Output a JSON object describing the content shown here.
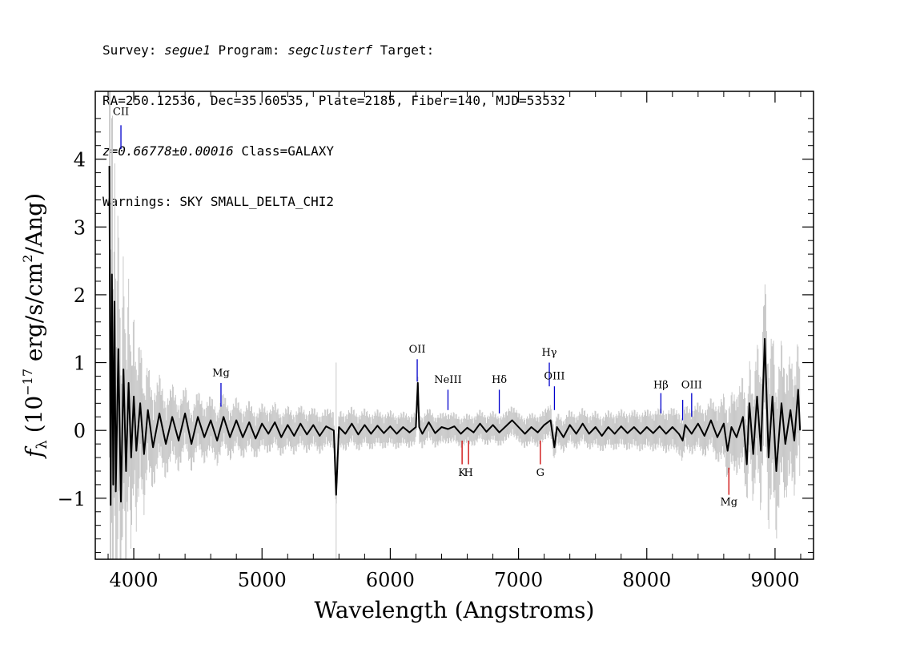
{
  "header": {
    "line1_a": "Survey: ",
    "survey": "segue1",
    "line1_b": " Program: ",
    "program": "segclusterf",
    "line1_c": " Target:",
    "line2": "RA=250.12536, Dec=35.60535, Plate=2185, Fiber=140, MJD=53532",
    "redshift": "z=0.66778±0.00016",
    "class_text": " Class=GALAXY",
    "warnings": "Warnings: SKY SMALL_DELTA_CHI2"
  },
  "chart_data": {
    "type": "line",
    "xlabel": "Wavelength (Angstroms)",
    "ylabel_parts": {
      "f": "f",
      "sub": "λ",
      "open": " (10",
      "exp": "−17",
      "mid": " erg/s/cm",
      "exp2": "2",
      "close": "/Ang)"
    },
    "xlim": [
      3700,
      9300
    ],
    "ylim": [
      -1.9,
      5.0
    ],
    "x_ticks": [
      {
        "value": 4000,
        "label": "4000"
      },
      {
        "value": 5000,
        "label": "5000"
      },
      {
        "value": 6000,
        "label": "6000"
      },
      {
        "value": 7000,
        "label": "7000"
      },
      {
        "value": 8000,
        "label": "8000"
      },
      {
        "value": 9000,
        "label": "9000"
      }
    ],
    "y_ticks": [
      {
        "value": -1,
        "label": "−1"
      },
      {
        "value": 0,
        "label": "0"
      },
      {
        "value": 1,
        "label": "1"
      },
      {
        "value": 2,
        "label": "2"
      },
      {
        "value": 3,
        "label": "3"
      },
      {
        "value": 4,
        "label": "4"
      }
    ],
    "colors": {
      "flux": "#000000",
      "error_band": "#c8c8c8",
      "emission": "#0000cc",
      "absorption": "#cc0000"
    },
    "series": [
      {
        "role": "flux",
        "points": [
          [
            3810,
            3.9
          ],
          [
            3820,
            -1.1
          ],
          [
            3830,
            2.3
          ],
          [
            3840,
            -0.8
          ],
          [
            3850,
            1.9
          ],
          [
            3860,
            -0.9
          ],
          [
            3880,
            1.2
          ],
          [
            3900,
            -1.05
          ],
          [
            3920,
            0.9
          ],
          [
            3940,
            -0.6
          ],
          [
            3960,
            0.7
          ],
          [
            3980,
            -0.4
          ],
          [
            4000,
            0.5
          ],
          [
            4020,
            -0.3
          ],
          [
            4050,
            0.4
          ],
          [
            4080,
            -0.35
          ],
          [
            4110,
            0.3
          ],
          [
            4150,
            -0.25
          ],
          [
            4200,
            0.25
          ],
          [
            4250,
            -0.2
          ],
          [
            4300,
            0.2
          ],
          [
            4350,
            -0.15
          ],
          [
            4400,
            0.25
          ],
          [
            4450,
            -0.2
          ],
          [
            4500,
            0.2
          ],
          [
            4550,
            -0.1
          ],
          [
            4600,
            0.15
          ],
          [
            4650,
            -0.15
          ],
          [
            4700,
            0.2
          ],
          [
            4750,
            -0.1
          ],
          [
            4800,
            0.15
          ],
          [
            4850,
            -0.1
          ],
          [
            4900,
            0.12
          ],
          [
            4950,
            -0.12
          ],
          [
            5000,
            0.1
          ],
          [
            5050,
            -0.05
          ],
          [
            5100,
            0.12
          ],
          [
            5150,
            -0.1
          ],
          [
            5200,
            0.08
          ],
          [
            5250,
            -0.08
          ],
          [
            5300,
            0.1
          ],
          [
            5350,
            -0.06
          ],
          [
            5400,
            0.08
          ],
          [
            5450,
            -0.08
          ],
          [
            5500,
            0.06
          ],
          [
            5560,
            0.0
          ],
          [
            5578,
            -0.95
          ],
          [
            5600,
            0.05
          ],
          [
            5650,
            -0.05
          ],
          [
            5700,
            0.1
          ],
          [
            5750,
            -0.06
          ],
          [
            5800,
            0.08
          ],
          [
            5850,
            -0.05
          ],
          [
            5900,
            0.07
          ],
          [
            5950,
            -0.04
          ],
          [
            6000,
            0.06
          ],
          [
            6050,
            -0.05
          ],
          [
            6100,
            0.05
          ],
          [
            6150,
            -0.03
          ],
          [
            6200,
            0.05
          ],
          [
            6215,
            0.7
          ],
          [
            6225,
            0.05
          ],
          [
            6250,
            -0.05
          ],
          [
            6300,
            0.12
          ],
          [
            6350,
            -0.04
          ],
          [
            6400,
            0.05
          ],
          [
            6450,
            0.02
          ],
          [
            6500,
            0.06
          ],
          [
            6550,
            -0.05
          ],
          [
            6600,
            0.04
          ],
          [
            6650,
            -0.03
          ],
          [
            6700,
            0.1
          ],
          [
            6750,
            -0.02
          ],
          [
            6800,
            0.08
          ],
          [
            6850,
            -0.03
          ],
          [
            6900,
            0.06
          ],
          [
            6950,
            0.15
          ],
          [
            7000,
            0.05
          ],
          [
            7050,
            -0.05
          ],
          [
            7100,
            0.05
          ],
          [
            7150,
            -0.03
          ],
          [
            7200,
            0.08
          ],
          [
            7250,
            0.15
          ],
          [
            7280,
            -0.25
          ],
          [
            7300,
            0.05
          ],
          [
            7350,
            -0.1
          ],
          [
            7400,
            0.08
          ],
          [
            7450,
            -0.05
          ],
          [
            7500,
            0.1
          ],
          [
            7550,
            -0.05
          ],
          [
            7600,
            0.05
          ],
          [
            7650,
            -0.08
          ],
          [
            7700,
            0.05
          ],
          [
            7750,
            -0.05
          ],
          [
            7800,
            0.06
          ],
          [
            7850,
            -0.04
          ],
          [
            7900,
            0.05
          ],
          [
            7950,
            -0.05
          ],
          [
            8000,
            0.05
          ],
          [
            8050,
            -0.04
          ],
          [
            8100,
            0.06
          ],
          [
            8150,
            -0.05
          ],
          [
            8200,
            0.05
          ],
          [
            8250,
            -0.05
          ],
          [
            8280,
            -0.15
          ],
          [
            8300,
            0.08
          ],
          [
            8350,
            -0.05
          ],
          [
            8400,
            0.1
          ],
          [
            8450,
            -0.08
          ],
          [
            8500,
            0.15
          ],
          [
            8550,
            -0.1
          ],
          [
            8600,
            0.1
          ],
          [
            8630,
            -0.3
          ],
          [
            8660,
            0.05
          ],
          [
            8700,
            -0.1
          ],
          [
            8750,
            0.2
          ],
          [
            8780,
            -0.5
          ],
          [
            8800,
            0.4
          ],
          [
            8830,
            -0.35
          ],
          [
            8860,
            0.5
          ],
          [
            8890,
            -0.3
          ],
          [
            8920,
            1.35
          ],
          [
            8950,
            -0.4
          ],
          [
            8980,
            0.5
          ],
          [
            9010,
            -0.6
          ],
          [
            9050,
            0.4
          ],
          [
            9080,
            -0.2
          ],
          [
            9120,
            0.3
          ],
          [
            9150,
            -0.15
          ],
          [
            9180,
            0.6
          ],
          [
            9195,
            0.0
          ]
        ]
      },
      {
        "role": "error_band",
        "band": [
          [
            3810,
            4.8
          ],
          [
            3850,
            2.8
          ],
          [
            3900,
            2.0
          ],
          [
            4000,
            1.3
          ],
          [
            4100,
            0.8
          ],
          [
            4200,
            0.6
          ],
          [
            4400,
            0.45
          ],
          [
            4700,
            0.38
          ],
          [
            5000,
            0.32
          ],
          [
            5500,
            0.28
          ],
          [
            6000,
            0.25
          ],
          [
            6500,
            0.22
          ],
          [
            7000,
            0.22
          ],
          [
            7500,
            0.25
          ],
          [
            8000,
            0.28
          ],
          [
            8500,
            0.35
          ],
          [
            8800,
            0.7
          ],
          [
            8950,
            1.2
          ],
          [
            9100,
            0.9
          ],
          [
            9195,
            0.8
          ]
        ]
      }
    ],
    "emission_lines": [
      {
        "label": "CII",
        "x": 3900,
        "y0": 4.15,
        "y1": 4.5,
        "label_y": 4.65
      },
      {
        "label": "Mg",
        "x": 4680,
        "y0": 0.35,
        "y1": 0.7,
        "label_y": 0.8
      },
      {
        "label": "OII",
        "x": 6210,
        "y0": 0.72,
        "y1": 1.05,
        "label_y": 1.15
      },
      {
        "label": "NeIII",
        "x": 6450,
        "y0": 0.3,
        "y1": 0.6,
        "label_y": 0.7
      },
      {
        "label": "Hδ",
        "x": 6850,
        "y0": 0.25,
        "y1": 0.6,
        "label_y": 0.7
      },
      {
        "label": "Hγ",
        "x": 7240,
        "y0": 0.65,
        "y1": 1.0,
        "label_y": 1.1
      },
      {
        "label": "OIII",
        "x": 7280,
        "y0": 0.3,
        "y1": 0.65,
        "label_y": 0.75
      },
      {
        "label": "Hβ",
        "x": 8110,
        "y0": 0.25,
        "y1": 0.55,
        "label_y": 0.62
      },
      {
        "label": "",
        "x": 8280,
        "y0": 0.15,
        "y1": 0.45,
        "label_y": 0.5
      },
      {
        "label": "OIII",
        "x": 8350,
        "y0": 0.2,
        "y1": 0.55,
        "label_y": 0.62
      }
    ],
    "absorption_lines": [
      {
        "label": "K",
        "x": 6560,
        "y0": -0.15,
        "y1": -0.5,
        "label_y": -0.67
      },
      {
        "label": "H",
        "x": 6610,
        "y0": -0.15,
        "y1": -0.5,
        "label_y": -0.67
      },
      {
        "label": "G",
        "x": 7170,
        "y0": -0.15,
        "y1": -0.5,
        "label_y": -0.67
      },
      {
        "label": "Mg",
        "x": 8640,
        "y0": -0.55,
        "y1": -0.95,
        "label_y": -1.1
      }
    ]
  }
}
